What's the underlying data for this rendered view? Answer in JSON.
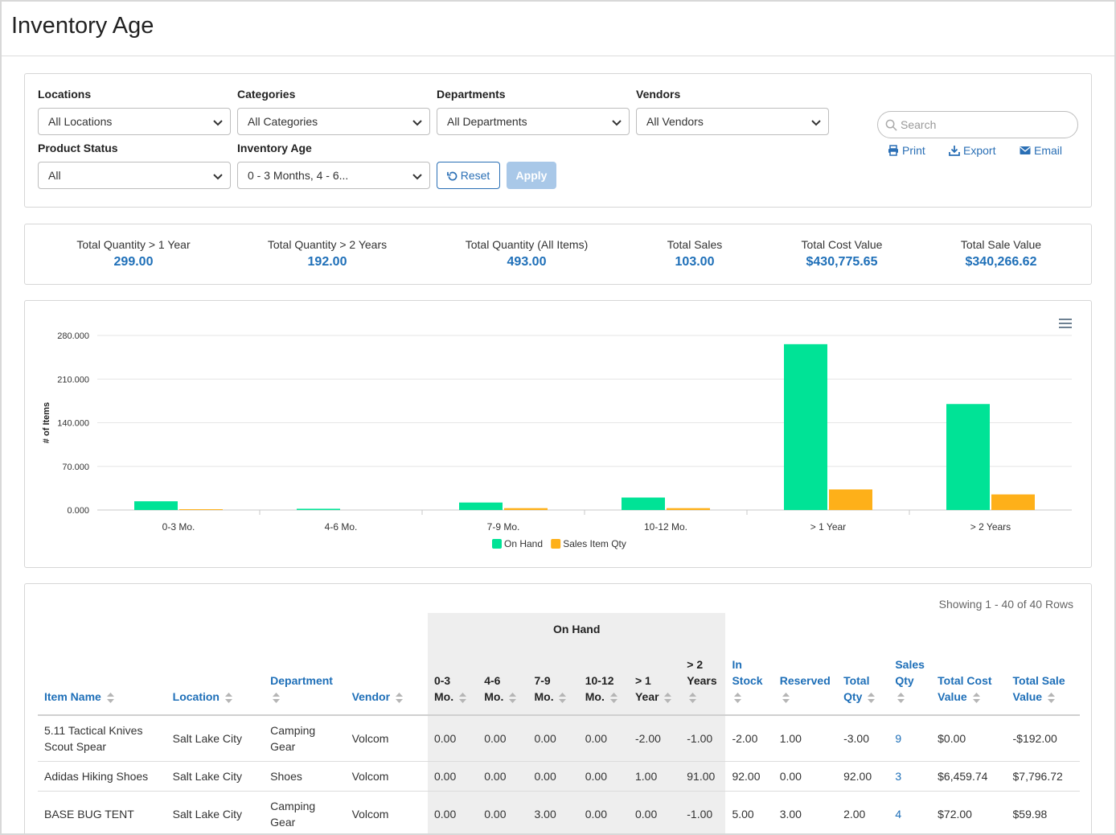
{
  "page": {
    "title": "Inventory Age"
  },
  "filters": {
    "locations": {
      "label": "Locations",
      "value": "All Locations"
    },
    "categories": {
      "label": "Categories",
      "value": "All Categories"
    },
    "departments": {
      "label": "Departments",
      "value": "All Departments"
    },
    "vendors": {
      "label": "Vendors",
      "value": "All Vendors"
    },
    "product_status": {
      "label": "Product Status",
      "value": "All"
    },
    "inventory_age": {
      "label": "Inventory Age",
      "value": "0 - 3 Months, 4 - 6..."
    },
    "reset_label": "Reset",
    "apply_label": "Apply"
  },
  "search": {
    "placeholder": "Search"
  },
  "actions": {
    "print": "Print",
    "export": "Export",
    "email": "Email"
  },
  "totals": [
    {
      "label": "Total Quantity > 1 Year",
      "value": "299.00"
    },
    {
      "label": "Total Quantity > 2 Years",
      "value": "192.00"
    },
    {
      "label": "Total Quantity (All Items)",
      "value": "493.00"
    },
    {
      "label": "Total Sales",
      "value": "103.00"
    },
    {
      "label": "Total Cost Value",
      "value": "$430,775.65"
    },
    {
      "label": "Total Sale Value",
      "value": "$340,266.62"
    }
  ],
  "chart_data": {
    "type": "bar",
    "categories": [
      "0-3 Mo.",
      "4-6 Mo.",
      "7-9 Mo.",
      "10-12 Mo.",
      "> 1 Year",
      "> 2 Years"
    ],
    "series": [
      {
        "name": "On Hand",
        "color": "#00e396",
        "values": [
          14,
          2,
          12,
          20,
          266,
          170
        ]
      },
      {
        "name": "Sales Item Qty",
        "color": "#feb019",
        "values": [
          1,
          0,
          3,
          3,
          33,
          25
        ]
      }
    ],
    "ylabel": "# of Items",
    "ylim": [
      0,
      280
    ],
    "yticks": [
      "0.000",
      "70.000",
      "140.000",
      "210.000",
      "280.000"
    ],
    "grid": true,
    "legend": "bottom"
  },
  "table": {
    "showing": "Showing 1 - 40 of 40 Rows",
    "group_header": "On Hand",
    "headers": {
      "item_name": "Item Name",
      "location": "Location",
      "department": "Department",
      "vendor": "Vendor",
      "age_0_3": "0-3 Mo.",
      "age_4_6": "4-6 Mo.",
      "age_7_9": "7-9 Mo.",
      "age_10_12": "10-12 Mo.",
      "age_gt1": "> 1 Year",
      "age_gt2": "> 2 Years",
      "in_stock": "In Stock",
      "reserved": "Reserved",
      "total_qty": "Total Qty",
      "sales_qty": "Sales Qty",
      "total_cost": "Total Cost Value",
      "total_sale": "Total Sale Value"
    },
    "rows": [
      {
        "item": "5.11 Tactical Knives Scout Spear",
        "location": "Salt Lake City",
        "department": "Camping Gear",
        "vendor": "Volcom",
        "a0": "0.00",
        "a1": "0.00",
        "a2": "0.00",
        "a3": "0.00",
        "a4": "-2.00",
        "a5": "-1.00",
        "in_stock": "-2.00",
        "reserved": "1.00",
        "total_qty": "-3.00",
        "sales_qty": "9",
        "total_cost": "$0.00",
        "total_sale": "-$192.00"
      },
      {
        "item": "Adidas Hiking Shoes",
        "location": "Salt Lake City",
        "department": "Shoes",
        "vendor": "Volcom",
        "a0": "0.00",
        "a1": "0.00",
        "a2": "0.00",
        "a3": "0.00",
        "a4": "1.00",
        "a5": "91.00",
        "in_stock": "92.00",
        "reserved": "0.00",
        "total_qty": "92.00",
        "sales_qty": "3",
        "total_cost": "$6,459.74",
        "total_sale": "$7,796.72"
      },
      {
        "item": "BASE BUG TENT",
        "location": "Salt Lake City",
        "department": "Camping Gear",
        "vendor": "Volcom",
        "a0": "0.00",
        "a1": "0.00",
        "a2": "3.00",
        "a3": "0.00",
        "a4": "0.00",
        "a5": "-1.00",
        "in_stock": "5.00",
        "reserved": "3.00",
        "total_qty": "2.00",
        "sales_qty": "4",
        "total_cost": "$72.00",
        "total_sale": "$59.98"
      }
    ]
  }
}
